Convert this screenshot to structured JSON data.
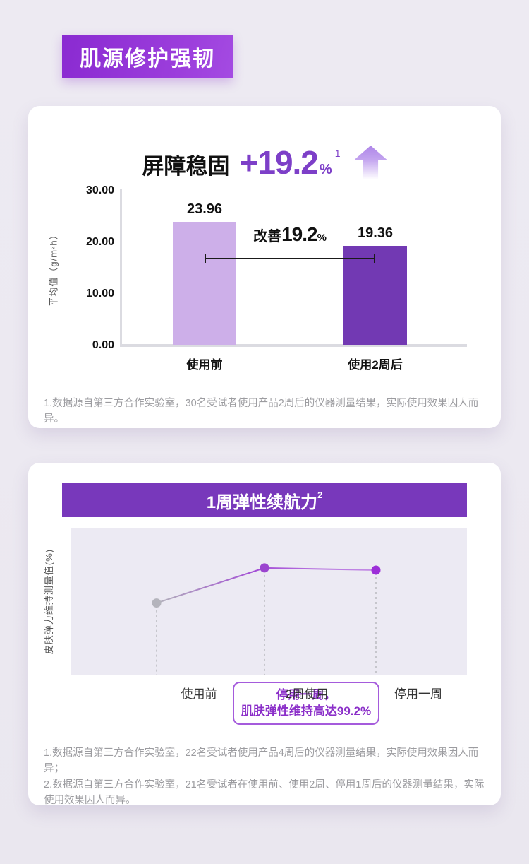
{
  "colors": {
    "page_bg": "#ECE9F1",
    "badge_purple_start": "#8A2AD1",
    "badge_purple_end": "#A44BE2",
    "accent_purple": "#7D3FC8",
    "bar_light_purple": "#CDAFE9",
    "bar_dark_purple": "#7239B3",
    "header_bar_purple": "#7838BB",
    "plot_background": "#ECEAF3",
    "axis_gray": "#DBDBE1",
    "footnote_gray": "#9C9CA0",
    "callout_purple": "#8B2FC9",
    "callout_border": "#A55BDC",
    "point_gray": "#B4B4BC",
    "point_purple": "#9B45CF"
  },
  "badge": {
    "label": "肌源修护强韧"
  },
  "card1": {
    "title": "屏障稳固",
    "delta": "+19.2",
    "delta_unit": "%",
    "delta_sup": "1",
    "ylabel": "平均值（g/m²h）",
    "yticks": [
      "30.00",
      "20.00",
      "10.00",
      "0.00"
    ],
    "bars": [
      {
        "label": "使用前",
        "value": "23.96"
      },
      {
        "label": "使用2周后",
        "value": "19.36"
      }
    ],
    "improve_label": "改善",
    "improve_value": "19.2",
    "improve_unit": "%",
    "footnote": "1.数据源自第三方合作实验室，30名受试者使用产品2周后的仪器测量结果，实际使用效果因人而异。"
  },
  "card2": {
    "header": "1周弹性续航力",
    "header_sup": "2",
    "ylabel": "皮肤弹力维持测量值(%)",
    "points": [
      {
        "label": "使用前"
      },
      {
        "label": "2周使用"
      },
      {
        "label": "停用一周"
      }
    ],
    "callout_line1": "停用一周，",
    "callout_line2": "肌肤弹性维持高达99.2%",
    "footnotes": [
      "1.数据源自第三方合作实验室，22名受试者使用产品4周后的仪器测量结果，实际使用效果因人而异；",
      "2.数据源自第三方合作实验室，21名受试者在使用前、使用2周、停用1周后的仪器测量结果，实际使用效果因人而异。"
    ]
  },
  "chart_data": [
    {
      "type": "bar",
      "title": "屏障稳固 +19.2%",
      "categories": [
        "使用前",
        "使用2周后"
      ],
      "values": [
        23.96,
        19.36
      ],
      "ylabel": "平均值（g/m²h）",
      "ylim": [
        0,
        30
      ],
      "yticks": [
        30.0,
        20.0,
        10.0,
        0.0
      ],
      "annotation": "改善19.2%",
      "bar_colors": [
        "#CDAFE9",
        "#7239B3"
      ],
      "grid": false,
      "legend": false
    },
    {
      "type": "line",
      "title": "1周弹性续航力",
      "categories": [
        "使用前",
        "2周使用",
        "停用一周"
      ],
      "values_estimated": [
        49,
        73,
        71.5
      ],
      "ylim": [
        0,
        100
      ],
      "ylabel": "皮肤弹力维持测量值(%)",
      "annotation": "停用一周，肌肤弹性维持高达99.2%",
      "point_colors": [
        "#B4B4BC",
        "#9B45CF",
        "#9C2ED8"
      ],
      "grid": false,
      "legend": false
    }
  ]
}
